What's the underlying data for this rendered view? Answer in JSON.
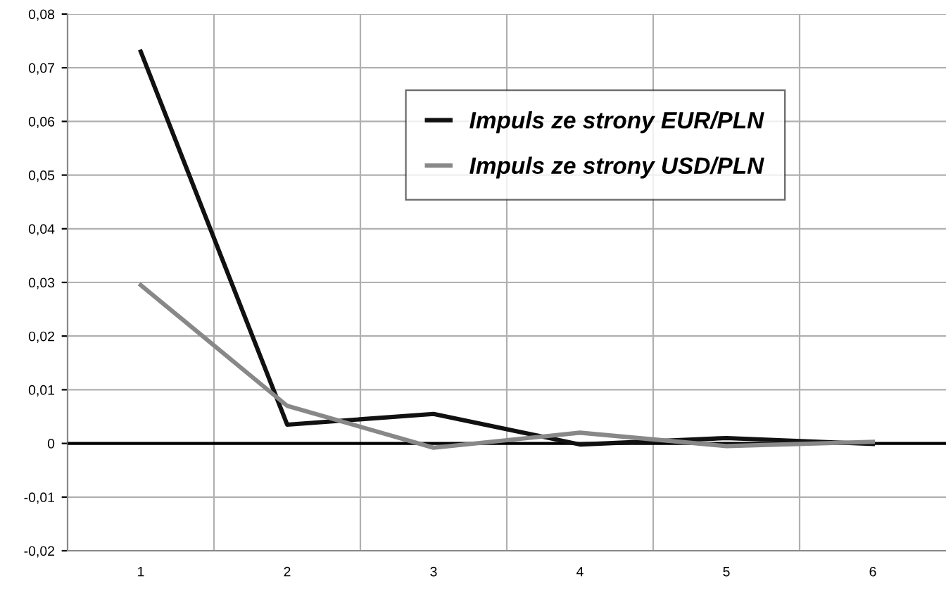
{
  "chart_data": {
    "type": "line",
    "categories": [
      "1",
      "2",
      "3",
      "4",
      "5",
      "6"
    ],
    "series": [
      {
        "name": "Impuls ze strony EUR/PLN",
        "color": "#111111",
        "values": [
          0.073,
          0.0035,
          0.0055,
          -0.0002,
          0.001,
          -0.0001
        ]
      },
      {
        "name": "Impuls ze strony USD/PLN",
        "color": "#888888",
        "values": [
          0.0295,
          0.007,
          -0.0008,
          0.002,
          -0.0005,
          0.0003
        ]
      }
    ],
    "ylim": [
      -0.02,
      0.08
    ],
    "yticks": [
      {
        "value": -0.02,
        "label": "-0,02"
      },
      {
        "value": -0.01,
        "label": "-0,01"
      },
      {
        "value": 0,
        "label": "0"
      },
      {
        "value": 0.01,
        "label": "0,01"
      },
      {
        "value": 0.02,
        "label": "0,02"
      },
      {
        "value": 0.03,
        "label": "0,03"
      },
      {
        "value": 0.04,
        "label": "0,04"
      },
      {
        "value": 0.05,
        "label": "0,05"
      },
      {
        "value": 0.06,
        "label": "0,06"
      },
      {
        "value": 0.07,
        "label": "0,07"
      },
      {
        "value": 0.08,
        "label": "0,08"
      }
    ],
    "ref_lines": [
      {
        "axis": "y",
        "value": 0,
        "color": "#000000"
      }
    ],
    "grid": true,
    "legend": "top right",
    "marker": "none",
    "line_style": "solid"
  }
}
